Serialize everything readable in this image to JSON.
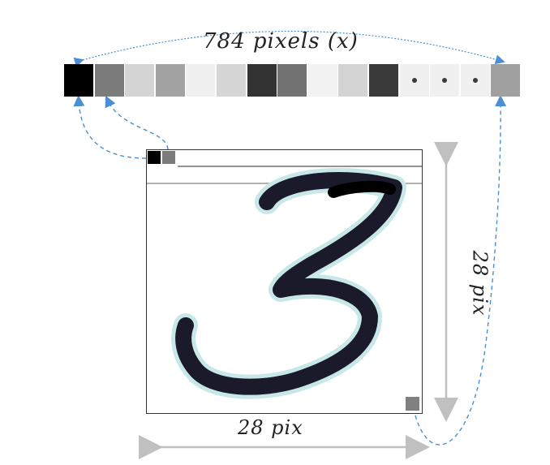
{
  "labels": {
    "pixels_row": "784 pixels (x)",
    "width": "28 pix",
    "height": "28 pix"
  },
  "pixel_row": [
    {
      "shade": "#000000"
    },
    {
      "shade": "#7b7b7b"
    },
    {
      "shade": "#d4d4d4"
    },
    {
      "shade": "#a3a3a3"
    },
    {
      "shade": "#f0f0f0"
    },
    {
      "shade": "#d6d6d6"
    },
    {
      "shade": "#333333"
    },
    {
      "shade": "#727272"
    },
    {
      "shade": "#f2f2f2"
    },
    {
      "shade": "#d4d4d4"
    },
    {
      "shade": "#3a3a3a"
    },
    {
      "shade": "#f0f0f0",
      "ellipsis": true
    },
    {
      "shade": "#f0f0f0",
      "ellipsis": true
    },
    {
      "shade": "#f0f0f0",
      "ellipsis": true
    },
    {
      "shade": "#a0a0a0"
    }
  ],
  "image": {
    "digit": "3",
    "top_left_pixels": [
      "#000000",
      "#7b7b7b"
    ],
    "corner_pixel": "#808080"
  },
  "colors": {
    "arrow_blue": "#4a8fd4",
    "dimension_gray": "#c0c0c0",
    "frame_line": "#333333"
  }
}
